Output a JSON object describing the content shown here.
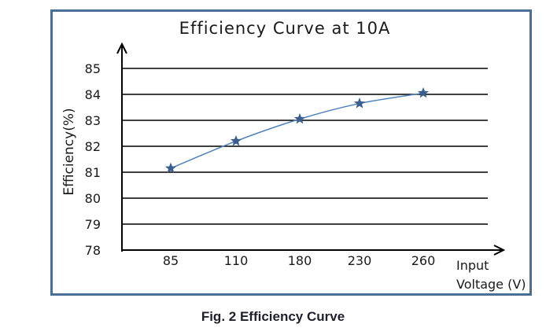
{
  "chart_data": {
    "type": "line",
    "title": "Efficiency Curve at 10A",
    "xlabel": "Voltage (V)",
    "xlabel_prefix": "Input",
    "ylabel": "Efficiency(%)",
    "categories": [
      "85",
      "110",
      "180",
      "230",
      "260"
    ],
    "series": [
      {
        "name": "Efficiency",
        "values": [
          81.15,
          82.2,
          83.05,
          83.65,
          84.05
        ],
        "marker": "star"
      }
    ],
    "ylim": [
      78,
      85
    ],
    "yticks": [
      "78",
      "79",
      "80",
      "81",
      "82",
      "83",
      "84",
      "85"
    ],
    "grid": true,
    "colors": {
      "line": "#4f81bd",
      "marker": "#3a5f8f",
      "frame": "#4a6f94",
      "axis": "#000000"
    }
  },
  "caption": "Fig. 2 Efficiency Curve"
}
